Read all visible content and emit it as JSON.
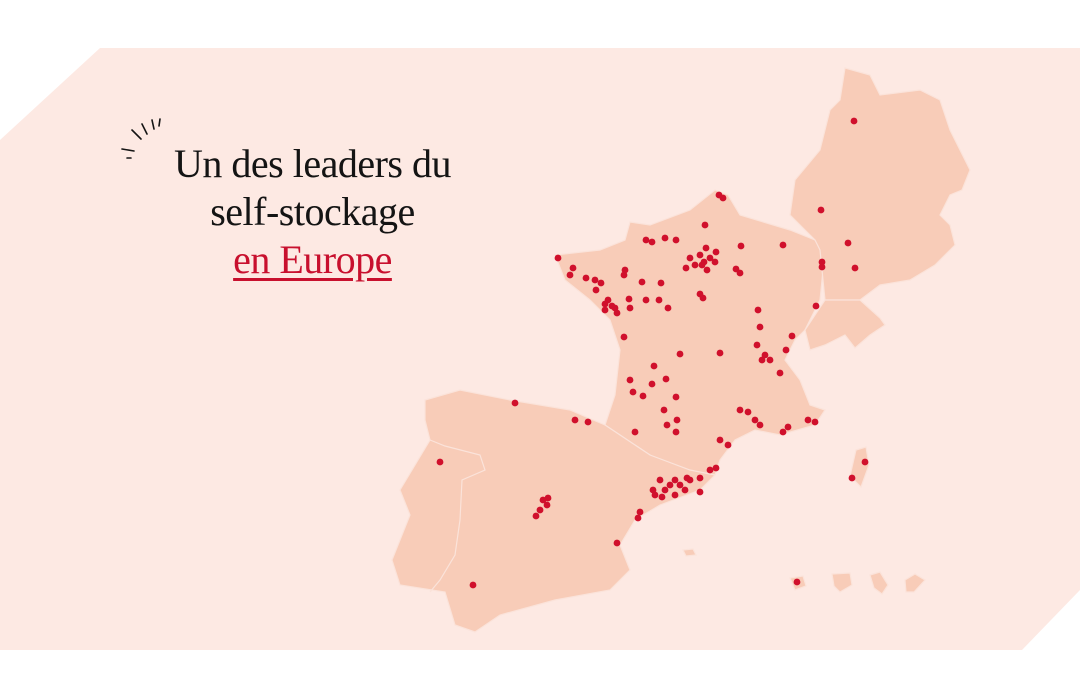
{
  "headline": {
    "line1": "Un des leaders du",
    "line2": "self-stockage",
    "line3": "en Europe"
  },
  "map": {
    "countries": [
      "France",
      "Spain",
      "Portugal",
      "Germany",
      "Switzerland",
      "Corsica",
      "Balearic Islands"
    ],
    "icons": [
      "sparkle-icon",
      "location-dot"
    ]
  },
  "colors": {
    "page": "#ffffff",
    "panel": "#fde9e3",
    "land": "#f8ccb8",
    "border": "#fbe3da",
    "dot": "#d0102c",
    "text": "#141414",
    "accent": "#c8102e"
  }
}
